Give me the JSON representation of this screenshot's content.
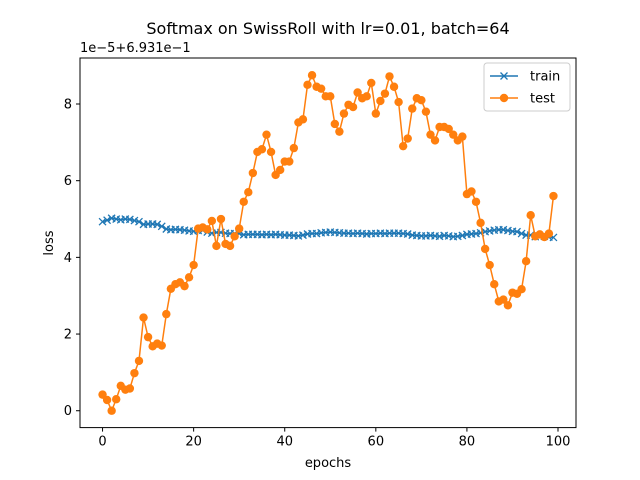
{
  "chart_data": {
    "type": "line",
    "title": "Softmax on SwissRoll with lr=0.01, batch=64",
    "xlabel": "epochs",
    "ylabel": "loss",
    "offset_label": "1e−5+6.931e−1",
    "xlim": [
      -4.95,
      103.95
    ],
    "ylim": [
      -0.44,
      9.2
    ],
    "xticks": [
      0,
      20,
      40,
      60,
      80,
      100
    ],
    "yticks": [
      0,
      2,
      4,
      6,
      8
    ],
    "grid": false,
    "legend_position": "top-right",
    "x": [
      0,
      1,
      2,
      3,
      4,
      5,
      6,
      7,
      8,
      9,
      10,
      11,
      12,
      13,
      14,
      15,
      16,
      17,
      18,
      19,
      20,
      21,
      22,
      23,
      24,
      25,
      26,
      27,
      28,
      29,
      30,
      31,
      32,
      33,
      34,
      35,
      36,
      37,
      38,
      39,
      40,
      41,
      42,
      43,
      44,
      45,
      46,
      47,
      48,
      49,
      50,
      51,
      52,
      53,
      54,
      55,
      56,
      57,
      58,
      59,
      60,
      61,
      62,
      63,
      64,
      65,
      66,
      67,
      68,
      69,
      70,
      71,
      72,
      73,
      74,
      75,
      76,
      77,
      78,
      79,
      80,
      81,
      82,
      83,
      84,
      85,
      86,
      87,
      88,
      89,
      90,
      91,
      92,
      93,
      94,
      95,
      96,
      97,
      98,
      99
    ],
    "series": [
      {
        "name": "train",
        "color": "#1f77b4",
        "marker": "x",
        "values": [
          4.93,
          4.97,
          5.02,
          5.0,
          4.98,
          5.0,
          4.99,
          4.96,
          4.93,
          4.86,
          4.87,
          4.87,
          4.86,
          4.81,
          4.74,
          4.72,
          4.73,
          4.72,
          4.71,
          4.69,
          4.68,
          4.7,
          4.71,
          4.66,
          4.63,
          4.65,
          4.65,
          4.63,
          4.62,
          4.62,
          4.62,
          4.59,
          4.6,
          4.6,
          4.6,
          4.59,
          4.6,
          4.59,
          4.6,
          4.59,
          4.58,
          4.58,
          4.57,
          4.56,
          4.58,
          4.61,
          4.62,
          4.62,
          4.64,
          4.65,
          4.66,
          4.65,
          4.64,
          4.63,
          4.63,
          4.62,
          4.63,
          4.62,
          4.61,
          4.62,
          4.62,
          4.63,
          4.62,
          4.63,
          4.63,
          4.63,
          4.62,
          4.61,
          4.58,
          4.57,
          4.56,
          4.56,
          4.57,
          4.56,
          4.55,
          4.57,
          4.56,
          4.54,
          4.55,
          4.57,
          4.6,
          4.61,
          4.62,
          4.64,
          4.67,
          4.69,
          4.71,
          4.72,
          4.72,
          4.7,
          4.68,
          4.67,
          4.62,
          4.58,
          4.58,
          4.54,
          4.56,
          4.55,
          4.53,
          4.52
        ]
      },
      {
        "name": "test",
        "color": "#ff7f0e",
        "marker": "o",
        "values": [
          0.42,
          0.28,
          0.0,
          0.3,
          0.65,
          0.55,
          0.58,
          0.98,
          1.3,
          2.43,
          1.92,
          1.68,
          1.75,
          1.7,
          2.52,
          3.18,
          3.3,
          3.35,
          3.25,
          3.48,
          3.8,
          4.75,
          4.78,
          4.73,
          4.95,
          4.3,
          5.0,
          4.35,
          4.3,
          4.55,
          4.75,
          5.45,
          5.7,
          6.2,
          6.75,
          6.82,
          7.2,
          6.75,
          6.15,
          6.28,
          6.5,
          6.5,
          6.85,
          7.52,
          7.6,
          8.5,
          8.75,
          8.45,
          8.4,
          8.2,
          8.2,
          7.48,
          7.28,
          7.75,
          7.98,
          7.92,
          8.3,
          8.15,
          8.2,
          8.55,
          7.75,
          8.08,
          8.27,
          8.72,
          8.45,
          8.05,
          6.9,
          7.1,
          7.88,
          8.15,
          8.1,
          7.8,
          7.2,
          7.05,
          7.4,
          7.4,
          7.35,
          7.2,
          7.05,
          7.15,
          5.65,
          5.72,
          5.45,
          4.9,
          4.22,
          3.8,
          3.3,
          2.85,
          2.9,
          2.75,
          3.08,
          3.05,
          3.17,
          3.9,
          5.1,
          4.55,
          4.6,
          4.53,
          4.62,
          5.6
        ]
      }
    ]
  }
}
